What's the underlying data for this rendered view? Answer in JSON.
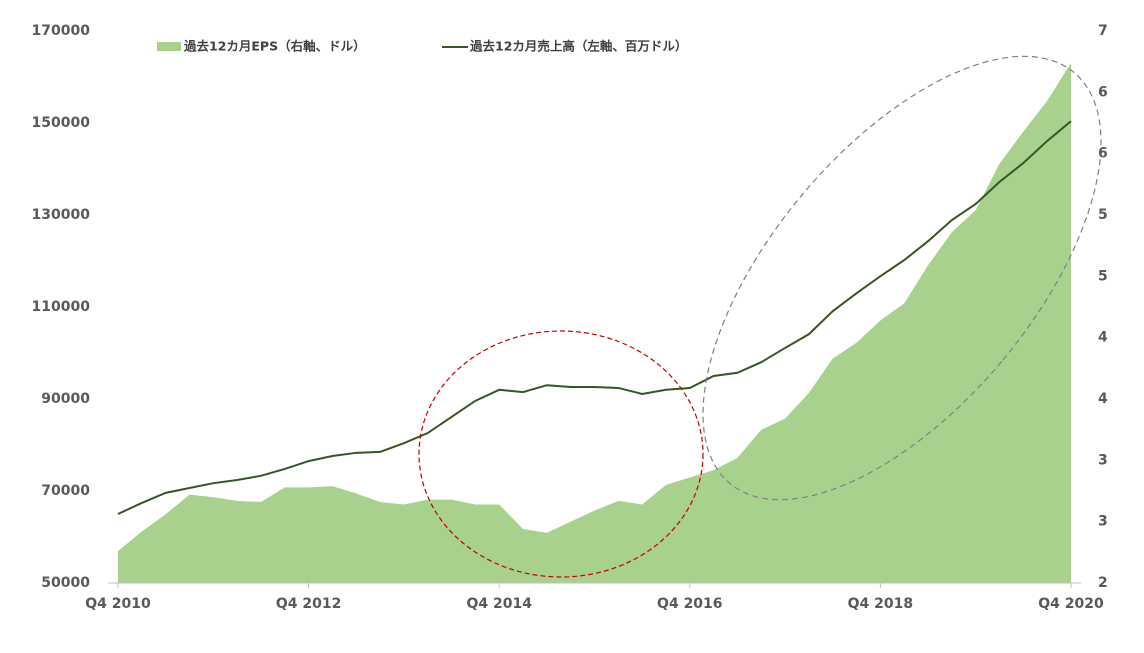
{
  "chart_data": {
    "type": "combo",
    "categories": [
      "Q4 2010",
      null,
      null,
      null,
      null,
      null,
      null,
      null,
      "Q4 2012",
      null,
      null,
      null,
      null,
      null,
      null,
      null,
      "Q4 2014",
      null,
      null,
      null,
      null,
      null,
      null,
      null,
      "Q4 2016",
      null,
      null,
      null,
      null,
      null,
      null,
      null,
      "Q4 2018",
      null,
      null,
      null,
      null,
      null,
      null,
      null,
      "Q4 2020"
    ],
    "series": [
      {
        "name": "過去12カ月EPS（右軸、ドル）",
        "type": "area",
        "axis": "y2",
        "color": "#a9d18e",
        "values": [
          2.26,
          2.42,
          2.56,
          2.72,
          2.7,
          2.67,
          2.66,
          2.78,
          2.78,
          2.79,
          2.73,
          2.66,
          2.64,
          2.68,
          2.68,
          2.64,
          2.64,
          2.44,
          2.41,
          2.5,
          2.59,
          2.67,
          2.64,
          2.8,
          2.86,
          2.92,
          3.02,
          3.25,
          3.34,
          3.55,
          3.83,
          3.96,
          4.14,
          4.28,
          4.59,
          4.86,
          5.04,
          5.42,
          5.68,
          5.93,
          6.24
        ]
      },
      {
        "name": "過去12カ月売上高（左軸、百万ドル）",
        "type": "line",
        "color": "#375623",
        "values": [
          65000,
          67400,
          69600,
          70650,
          71700,
          72400,
          73300,
          74800,
          76500,
          77600,
          78300,
          78500,
          80400,
          82600,
          86100,
          89600,
          92000,
          91500,
          93000,
          92600,
          92600,
          92400,
          91100,
          92000,
          92400,
          95000,
          95700,
          98000,
          101100,
          104100,
          109100,
          113000,
          116700,
          120200,
          124300,
          128900,
          132400,
          137200,
          141300,
          146100,
          150400
        ]
      }
    ],
    "ylim": [
      50000,
      170000
    ],
    "yticks": [
      50000,
      70000,
      90000,
      110000,
      130000,
      150000,
      170000
    ],
    "y2lim": [
      2,
      6.5
    ],
    "y2ticks": [
      2,
      {
        "value": 2.5,
        "label": "3"
      },
      3,
      {
        "value": 3.5,
        "label": "4"
      },
      4,
      {
        "value": 4.5,
        "label": "5"
      },
      5,
      {
        "value": 5.5,
        "label": "6"
      },
      6,
      {
        "value": 6.5,
        "label": "7"
      }
    ],
    "grid": false,
    "legend": "top"
  }
}
